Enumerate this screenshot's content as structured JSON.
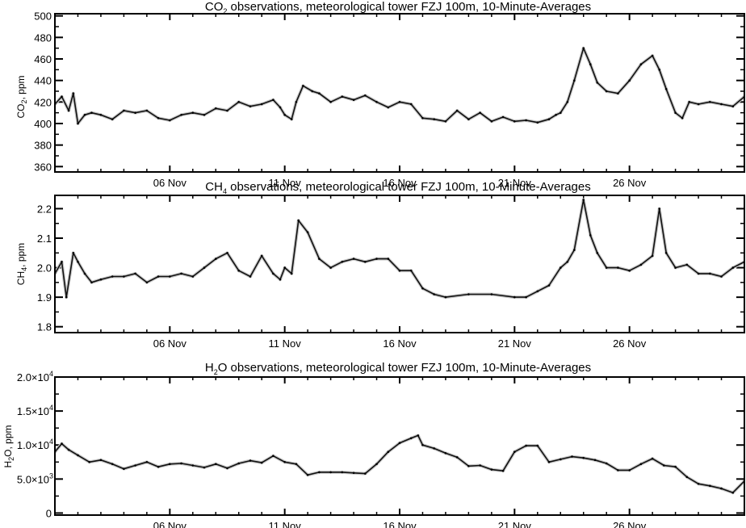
{
  "chart_data": [
    {
      "type": "line",
      "title": "CO₂ observations, meteorological tower FZJ 100m, 10-Minute-Averages",
      "title_parts": {
        "a": "CO",
        "sub": "2",
        "b": " observations, meteorological tower FZJ 100m, 10-Minute-Averages"
      },
      "ylabel": "CO₂, ppm",
      "ylabel_parts": {
        "a": "CO",
        "sub": "2",
        "b": ", ppm"
      },
      "xlabel": "",
      "xlim": [
        1,
        31
      ],
      "ylim": [
        355,
        502
      ],
      "x_unit": "day of November",
      "x_ticks": [
        6,
        11,
        16,
        21,
        26
      ],
      "x_tick_labels": [
        "06 Nov",
        "11 Nov",
        "16 Nov",
        "21 Nov",
        "26 Nov"
      ],
      "y_ticks": [
        360,
        380,
        400,
        420,
        440,
        460,
        480,
        500
      ],
      "y_tick_labels": [
        "360",
        "380",
        "400",
        "420",
        "440",
        "460",
        "480",
        "500"
      ],
      "series": [
        {
          "x": [
            1.0,
            1.3,
            1.6,
            1.8,
            2.0,
            2.3,
            2.6,
            3.0,
            3.5,
            4.0,
            4.5,
            5.0,
            5.5,
            6.0,
            6.5,
            7.0,
            7.5,
            8.0,
            8.5,
            9.0,
            9.5,
            10.0,
            10.5,
            10.8,
            11.0,
            11.3,
            11.5,
            11.8,
            12.2,
            12.5,
            13.0,
            13.5,
            14.0,
            14.5,
            15.0,
            15.5,
            16.0,
            16.5,
            17.0,
            17.5,
            18.0,
            18.5,
            19.0,
            19.5,
            20.0,
            20.5,
            21.0,
            21.5,
            22.0,
            22.5,
            22.8,
            23.0,
            23.3,
            23.6,
            24.0,
            24.3,
            24.6,
            25.0,
            25.5,
            26.0,
            26.5,
            27.0,
            27.3,
            27.6,
            28.0,
            28.3,
            28.6,
            29.0,
            29.5,
            30.0,
            30.5,
            31.0
          ],
          "y": [
            418,
            425,
            412,
            428,
            400,
            408,
            410,
            408,
            404,
            412,
            410,
            412,
            405,
            403,
            408,
            410,
            408,
            414,
            412,
            420,
            416,
            418,
            422,
            415,
            408,
            404,
            420,
            435,
            430,
            428,
            420,
            425,
            422,
            426,
            420,
            415,
            420,
            418,
            405,
            404,
            402,
            412,
            404,
            410,
            402,
            406,
            402,
            403,
            401,
            404,
            408,
            410,
            420,
            440,
            470,
            455,
            438,
            430,
            428,
            440,
            455,
            463,
            450,
            432,
            410,
            405,
            420,
            418,
            420,
            418,
            416,
            425
          ]
        }
      ]
    },
    {
      "type": "line",
      "title": "CH₄ observations, meteorological tower FZJ 100m, 10-Minute-Averages",
      "title_parts": {
        "a": "CH",
        "sub": "4",
        "b": " observations, meteorological tower FZJ 100m, 10-Minute-Averages"
      },
      "ylabel": "CH₄, ppm",
      "ylabel_parts": {
        "a": "CH",
        "sub": "4",
        "b": ", ppm"
      },
      "xlabel": "",
      "xlim": [
        1,
        31
      ],
      "ylim": [
        1.78,
        2.245
      ],
      "x_unit": "day of November",
      "x_ticks": [
        6,
        11,
        16,
        21,
        26
      ],
      "x_tick_labels": [
        "06 Nov",
        "11 Nov",
        "16 Nov",
        "21 Nov",
        "26 Nov"
      ],
      "y_ticks": [
        1.8,
        1.9,
        2.0,
        2.1,
        2.2
      ],
      "y_tick_labels": [
        "1.8",
        "1.9",
        "2.0",
        "2.1",
        "2.2"
      ],
      "series": [
        {
          "x": [
            1.0,
            1.3,
            1.5,
            1.8,
            2.0,
            2.3,
            2.6,
            3.0,
            3.5,
            4.0,
            4.5,
            5.0,
            5.5,
            6.0,
            6.5,
            7.0,
            7.5,
            8.0,
            8.5,
            9.0,
            9.5,
            10.0,
            10.5,
            10.8,
            11.0,
            11.3,
            11.6,
            12.0,
            12.5,
            13.0,
            13.5,
            14.0,
            14.5,
            15.0,
            15.5,
            16.0,
            16.5,
            17.0,
            17.5,
            18.0,
            19.0,
            20.0,
            21.0,
            21.5,
            22.0,
            22.5,
            23.0,
            23.3,
            23.6,
            24.0,
            24.3,
            24.6,
            25.0,
            25.5,
            26.0,
            26.5,
            27.0,
            27.3,
            27.6,
            28.0,
            28.5,
            29.0,
            29.5,
            30.0,
            30.5,
            31.0
          ],
          "y": [
            1.98,
            2.02,
            1.9,
            2.05,
            2.02,
            1.98,
            1.95,
            1.96,
            1.97,
            1.97,
            1.98,
            1.95,
            1.97,
            1.97,
            1.98,
            1.97,
            2.0,
            2.03,
            2.05,
            1.99,
            1.97,
            2.04,
            1.98,
            1.96,
            2.0,
            1.98,
            2.16,
            2.12,
            2.03,
            2.0,
            2.02,
            2.03,
            2.02,
            2.03,
            2.03,
            1.99,
            1.99,
            1.93,
            1.91,
            1.9,
            1.91,
            1.91,
            1.9,
            1.9,
            1.92,
            1.94,
            2.0,
            2.02,
            2.06,
            2.23,
            2.11,
            2.05,
            2.0,
            2.0,
            1.99,
            2.01,
            2.04,
            2.2,
            2.05,
            2.0,
            2.01,
            1.98,
            1.98,
            1.97,
            2.0,
            2.02
          ]
        }
      ]
    },
    {
      "type": "line",
      "title": "H₂O observations, meteorological tower FZJ 100m, 10-Minute-Averages",
      "title_parts": {
        "a": "H",
        "sub": "2",
        "b": "O observations, meteorological tower FZJ 100m, 10-Minute-Averages"
      },
      "ylabel": "H₂O, ppm",
      "ylabel_parts": {
        "a": "H",
        "sub": "2",
        "b": "O, ppm"
      },
      "xlabel": "",
      "xlim": [
        1,
        31
      ],
      "ylim": [
        -300,
        20000
      ],
      "x_unit": "day of November",
      "x_ticks": [
        6,
        11,
        16,
        21,
        26
      ],
      "x_tick_labels": [
        "06 Nov",
        "11 Nov",
        "16 Nov",
        "21 Nov",
        "26 Nov"
      ],
      "y_ticks": [
        0,
        5000,
        10000,
        15000,
        20000
      ],
      "y_tick_labels": [
        {
          "m": "0",
          "e": ""
        },
        {
          "m": "5.0×10",
          "e": "3"
        },
        {
          "m": "1.0×10",
          "e": "4"
        },
        {
          "m": "1.5×10",
          "e": "4"
        },
        {
          "m": "2.0×10",
          "e": "4"
        }
      ],
      "series": [
        {
          "x": [
            1.0,
            1.3,
            1.6,
            2.0,
            2.5,
            3.0,
            3.5,
            4.0,
            4.5,
            5.0,
            5.5,
            6.0,
            6.5,
            7.0,
            7.5,
            8.0,
            8.5,
            9.0,
            9.5,
            10.0,
            10.5,
            11.0,
            11.5,
            12.0,
            12.5,
            13.0,
            13.5,
            14.0,
            14.5,
            15.0,
            15.5,
            16.0,
            16.5,
            16.8,
            17.0,
            17.5,
            18.0,
            18.5,
            19.0,
            19.5,
            20.0,
            20.5,
            21.0,
            21.5,
            22.0,
            22.5,
            23.0,
            23.5,
            24.0,
            24.5,
            25.0,
            25.5,
            26.0,
            26.5,
            27.0,
            27.5,
            28.0,
            28.5,
            29.0,
            29.5,
            30.0,
            30.5,
            31.0
          ],
          "y": [
            9000,
            10200,
            9300,
            8500,
            7500,
            7800,
            7200,
            6500,
            7000,
            7500,
            6800,
            7200,
            7300,
            7000,
            6700,
            7200,
            6600,
            7300,
            7700,
            7400,
            8400,
            7500,
            7200,
            5600,
            6000,
            6000,
            6000,
            5900,
            5800,
            7200,
            9000,
            10300,
            11000,
            11400,
            10000,
            9500,
            8800,
            8200,
            6900,
            7000,
            6400,
            6200,
            9000,
            9900,
            9900,
            7500,
            7900,
            8300,
            8100,
            7800,
            7300,
            6300,
            6300,
            7200,
            8000,
            7000,
            6800,
            5300,
            4300,
            4000,
            3600,
            3000,
            4700
          ]
        }
      ]
    }
  ]
}
